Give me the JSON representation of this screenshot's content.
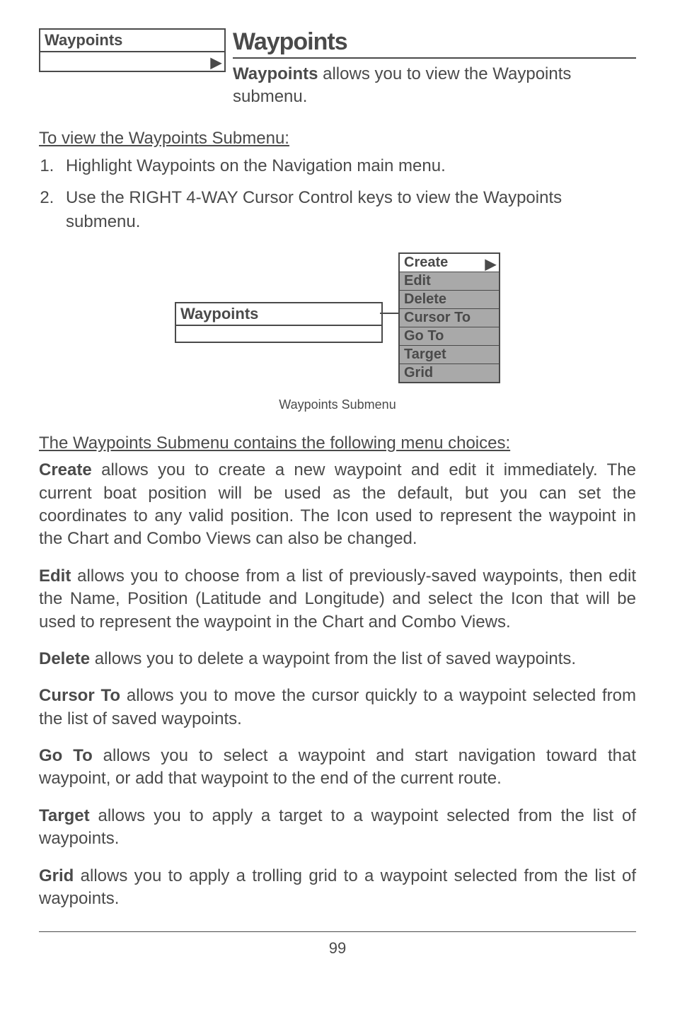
{
  "menuBox": {
    "label": "Waypoints",
    "arrow": "▶"
  },
  "title": "Waypoints",
  "lead": {
    "bold": "Waypoints",
    "rest": " allows you to view the Waypoints submenu."
  },
  "heading1": "To view the Waypoints Submenu:",
  "steps": [
    "Highlight Waypoints on the Navigation main menu.",
    "Use the RIGHT 4-WAY Cursor Control keys to view the Waypoints submenu."
  ],
  "figure": {
    "leftBox": "Waypoints",
    "items": [
      {
        "label": "Create",
        "active": true,
        "arrow": "▶"
      },
      {
        "label": "Edit",
        "active": false
      },
      {
        "label": "Delete",
        "active": false
      },
      {
        "label": "Cursor To",
        "active": false
      },
      {
        "label": "Go To",
        "active": false
      },
      {
        "label": "Target",
        "active": false
      },
      {
        "label": "Grid",
        "active": false
      }
    ],
    "caption": "Waypoints Submenu"
  },
  "heading2": "The Waypoints Submenu contains the following menu choices:",
  "paragraphs": [
    {
      "bold": "Create",
      "text": " allows you to create a new waypoint and edit it immediately. The current boat position will be used as the default, but you can set the coordinates to any valid position. The Icon used to represent the waypoint in the Chart and Combo Views can also be changed."
    },
    {
      "bold": "Edit",
      "text": " allows you to choose from a list of previously-saved waypoints, then edit the Name, Position (Latitude and Longitude) and select the Icon that will be used to represent the waypoint in the Chart and Combo Views."
    },
    {
      "bold": "Delete",
      "text": " allows you to delete a waypoint from the list of saved waypoints."
    },
    {
      "bold": "Cursor To",
      "text": " allows you to move the cursor quickly to a waypoint selected from the list of saved waypoints."
    },
    {
      "bold": "Go To",
      "text": " allows you to select a waypoint and start navigation toward that waypoint, or add that waypoint to the end of the current route."
    },
    {
      "bold": "Target",
      "text": " allows you to apply a target to a waypoint selected from the list of waypoints."
    },
    {
      "bold": "Grid",
      "text": " allows you to apply a trolling grid to a waypoint selected from the list of waypoints."
    }
  ],
  "pageNumber": "99"
}
